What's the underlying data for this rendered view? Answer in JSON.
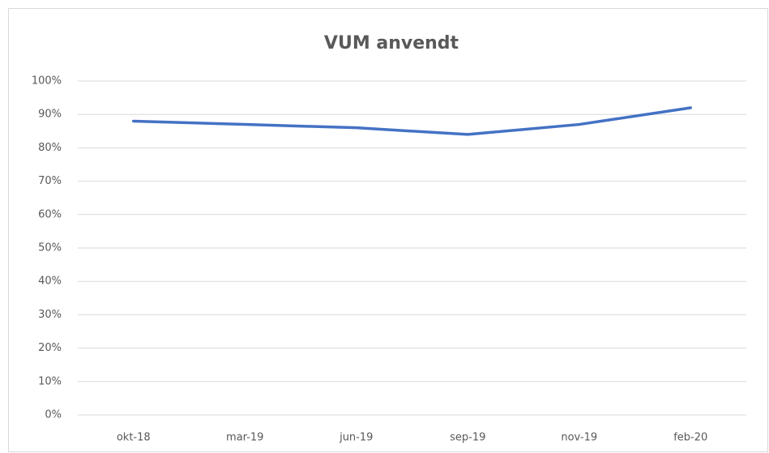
{
  "chart_data": {
    "type": "line",
    "title": "VUM anvendt",
    "categories": [
      "okt-18",
      "mar-19",
      "jun-19",
      "sep-19",
      "nov-19",
      "feb-20"
    ],
    "series": [
      {
        "name": "VUM anvendt",
        "color": "#4472c4",
        "values": [
          88,
          87,
          86,
          84,
          87,
          92
        ]
      }
    ],
    "ylim": [
      0,
      100
    ],
    "yticks": [
      {
        "value": 0,
        "label": "0%"
      },
      {
        "value": 10,
        "label": "10%"
      },
      {
        "value": 20,
        "label": "20%"
      },
      {
        "value": 30,
        "label": "30%"
      },
      {
        "value": 40,
        "label": "40%"
      },
      {
        "value": 50,
        "label": "50%"
      },
      {
        "value": 60,
        "label": "60%"
      },
      {
        "value": 70,
        "label": "70%"
      },
      {
        "value": 80,
        "label": "80%"
      },
      {
        "value": 90,
        "label": "90%"
      },
      {
        "value": 100,
        "label": "100%"
      }
    ],
    "grid": true
  }
}
